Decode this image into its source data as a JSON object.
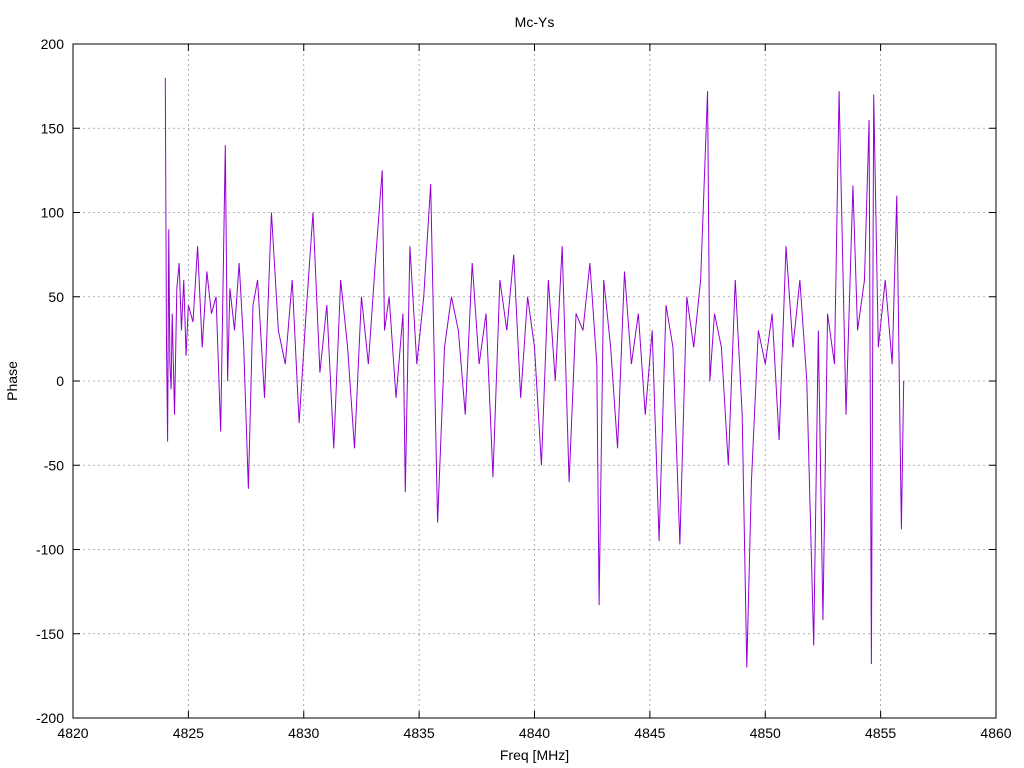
{
  "chart_data": {
    "type": "line",
    "title": "Mc-Ys",
    "xlabel": "Freq [MHz]",
    "ylabel": "Phase",
    "xlim": [
      4820,
      4860
    ],
    "ylim": [
      -200,
      200
    ],
    "xticks": [
      "4820",
      "4825",
      "4830",
      "4835",
      "4840",
      "4845",
      "4850",
      "4855",
      "4860"
    ],
    "yticks": [
      "200",
      "150",
      "100",
      "50",
      "0",
      "-50",
      "-100",
      "-150",
      "-200"
    ],
    "grid": true,
    "legend": "none",
    "series": [
      {
        "color": "#9400d3",
        "x": [
          4824.0,
          4824.05,
          4824.1,
          4824.15,
          4824.2,
          4824.25,
          4824.3,
          4824.4,
          4824.5,
          4824.6,
          4824.7,
          4824.8,
          4824.9,
          4825.0,
          4825.2,
          4825.4,
          4825.6,
          4825.8,
          4826.0,
          4826.2,
          4826.4,
          4826.6,
          4826.7,
          4826.8,
          4827.0,
          4827.2,
          4827.4,
          4827.6,
          4827.8,
          4828.0,
          4828.3,
          4828.6,
          4828.9,
          4829.2,
          4829.5,
          4829.8,
          4830.1,
          4830.4,
          4830.7,
          4831.0,
          4831.3,
          4831.6,
          4831.9,
          4832.2,
          4832.5,
          4832.8,
          4833.1,
          4833.4,
          4833.5,
          4833.7,
          4834.0,
          4834.3,
          4834.4,
          4834.6,
          4834.9,
          4835.2,
          4835.5,
          4835.8,
          4836.1,
          4836.4,
          4836.7,
          4837.0,
          4837.3,
          4837.6,
          4837.9,
          4838.2,
          4838.5,
          4838.8,
          4839.1,
          4839.4,
          4839.7,
          4840.0,
          4840.3,
          4840.6,
          4840.9,
          4841.2,
          4841.5,
          4841.8,
          4842.1,
          4842.4,
          4842.7,
          4842.8,
          4843.0,
          4843.3,
          4843.6,
          4843.9,
          4844.2,
          4844.5,
          4844.8,
          4845.1,
          4845.4,
          4845.7,
          4846.0,
          4846.3,
          4846.6,
          4846.9,
          4847.2,
          4847.5,
          4847.6,
          4847.8,
          4848.1,
          4848.4,
          4848.7,
          4849.0,
          4849.2,
          4849.4,
          4849.7,
          4850.0,
          4850.3,
          4850.6,
          4850.9,
          4851.2,
          4851.5,
          4851.8,
          4852.1,
          4852.3,
          4852.5,
          4852.7,
          4853.0,
          4853.2,
          4853.5,
          4853.8,
          4854.0,
          4854.3,
          4854.5,
          4854.6,
          4854.7,
          4854.9,
          4855.2,
          4855.5,
          4855.7,
          4855.9,
          4856.0
        ],
        "y": [
          180,
          25,
          -36,
          90,
          10,
          -5,
          40,
          -20,
          55,
          70,
          30,
          60,
          15,
          45,
          35,
          80,
          20,
          65,
          40,
          50,
          -30,
          140,
          0,
          55,
          30,
          70,
          20,
          -64,
          45,
          60,
          -10,
          100,
          30,
          10,
          60,
          -25,
          40,
          100,
          5,
          45,
          -40,
          60,
          20,
          -40,
          50,
          10,
          70,
          125,
          30,
          50,
          -10,
          40,
          -66,
          80,
          10,
          50,
          117,
          -84,
          20,
          50,
          30,
          -20,
          70,
          10,
          40,
          -57,
          60,
          30,
          75,
          -10,
          50,
          20,
          -50,
          60,
          0,
          80,
          -60,
          40,
          30,
          70,
          10,
          -133,
          60,
          20,
          -40,
          65,
          10,
          40,
          -20,
          30,
          -95,
          45,
          20,
          -97,
          50,
          20,
          60,
          172,
          0,
          40,
          20,
          -50,
          60,
          -20,
          -170,
          -60,
          30,
          10,
          40,
          -35,
          80,
          20,
          60,
          0,
          -157,
          30,
          -142,
          40,
          10,
          172,
          -20,
          116,
          30,
          60,
          155,
          -168,
          170,
          20,
          60,
          10,
          110,
          -88,
          0
        ]
      }
    ]
  }
}
